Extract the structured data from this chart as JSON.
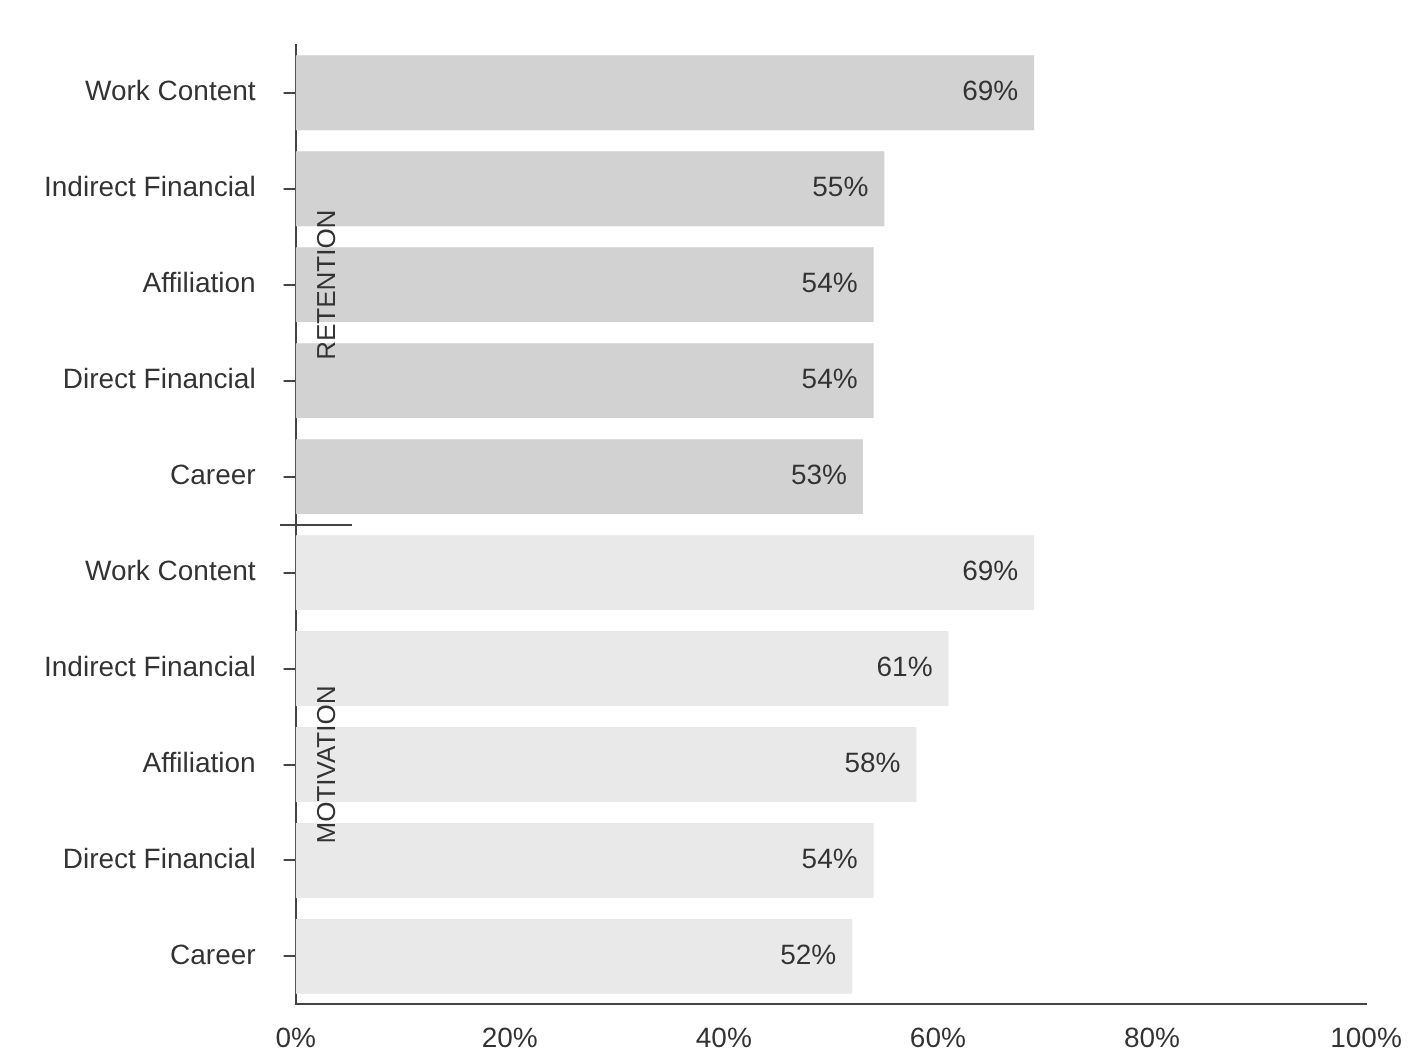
{
  "chart_data": {
    "type": "bar",
    "orientation": "horizontal",
    "categories": [
      "Work Content",
      "Indirect Financial",
      "Affiliation",
      "Direct Financial",
      "Career",
      "Work Content",
      "Indirect Financial",
      "Affiliation",
      "Direct Financial",
      "Career"
    ],
    "values": [
      69,
      55,
      54,
      54,
      53,
      69,
      61,
      58,
      54,
      52
    ],
    "colors": [
      "#d2d2d2",
      "#d2d2d2",
      "#d2d2d2",
      "#d2d2d2",
      "#d2d2d2",
      "#e9e9e9",
      "#e9e9e9",
      "#e9e9e9",
      "#e9e9e9",
      "#e9e9e9"
    ],
    "value_labels": [
      "69%",
      "55%",
      "54%",
      "54%",
      "53%",
      "69%",
      "61%",
      "58%",
      "54%",
      "52%"
    ],
    "xlim": [
      0,
      100
    ],
    "xticks": [
      {
        "value": 0,
        "label": "0%"
      },
      {
        "value": 20,
        "label": "20%"
      },
      {
        "value": 40,
        "label": "40%"
      },
      {
        "value": 60,
        "label": "60%"
      },
      {
        "value": 80,
        "label": "80%"
      },
      {
        "value": 100,
        "label": "100%"
      }
    ],
    "annotations": [
      "RETENTION",
      "MOTIVATION"
    ],
    "grid": false,
    "legend": false
  }
}
